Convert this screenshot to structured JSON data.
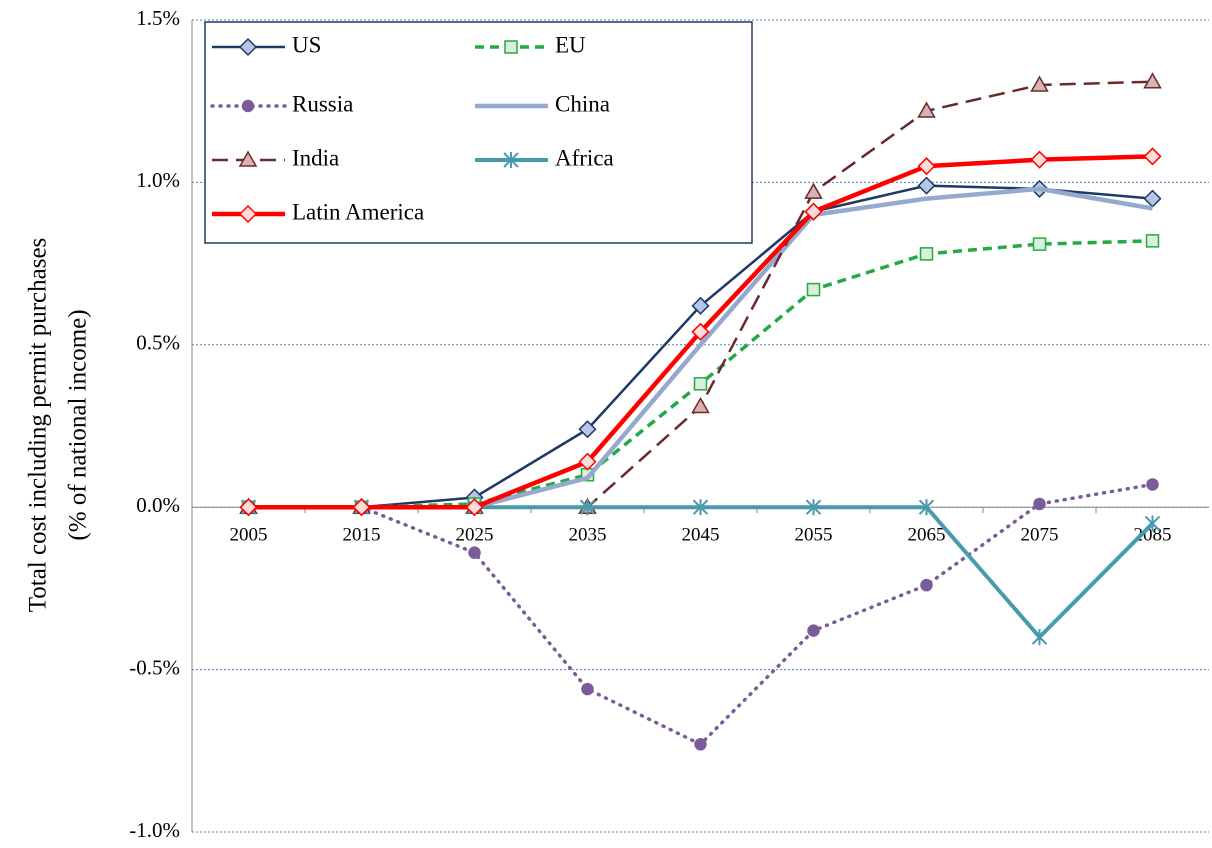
{
  "chart_data": {
    "type": "line",
    "ylabel": [
      "Total cost including permit purchases",
      "(% of national income)"
    ],
    "categories": [
      "2005",
      "2015",
      "2025",
      "2035",
      "2045",
      "2055",
      "2065",
      "2075",
      "2085"
    ],
    "ylim": [
      -1.0,
      1.5
    ],
    "yticks": [
      {
        "value": -1.0,
        "label": "-1.0%"
      },
      {
        "value": -0.5,
        "label": "-0.5%"
      },
      {
        "value": 0.0,
        "label": "0.0%"
      },
      {
        "value": 0.5,
        "label": "0.5%"
      },
      {
        "value": 1.0,
        "label": "1.0%"
      },
      {
        "value": 1.5,
        "label": "1.5%"
      }
    ],
    "grid": true,
    "legend": "top-left",
    "series": [
      {
        "name": "US",
        "color": "#1f3864",
        "marker": "diamond",
        "marker_fill": "#b4c7e7",
        "dash": "solid",
        "width": 2.5,
        "values": [
          0,
          0,
          0.03,
          0.24,
          0.62,
          0.91,
          0.99,
          0.98,
          0.95
        ]
      },
      {
        "name": "EU",
        "color": "#22aa44",
        "marker": "square",
        "marker_fill": "#d8f0dc",
        "dash": "dashed",
        "width": 3.5,
        "values": [
          0,
          0,
          0.01,
          0.1,
          0.38,
          0.67,
          0.78,
          0.81,
          0.82
        ]
      },
      {
        "name": "Russia",
        "color": "#7a5c99",
        "marker": "circle",
        "marker_fill": "#7a5c99",
        "dash": "dotted",
        "width": 3.5,
        "values": [
          0,
          0,
          -0.14,
          -0.56,
          -0.73,
          -0.38,
          -0.24,
          0.01,
          0.07
        ]
      },
      {
        "name": "China",
        "color": "#95a9cf",
        "marker": "none",
        "marker_fill": "#95a9cf",
        "dash": "solid",
        "width": 4.5,
        "values": [
          0,
          0,
          0,
          0.09,
          0.5,
          0.9,
          0.95,
          0.98,
          0.92
        ]
      },
      {
        "name": "India",
        "color": "#6b2a2a",
        "marker": "triangle",
        "marker_fill": "#d9b3b3",
        "dash": "long-dash",
        "width": 2.5,
        "values": [
          0,
          0,
          0,
          0,
          0.31,
          0.97,
          1.22,
          1.3,
          1.31
        ]
      },
      {
        "name": "Africa",
        "color": "#4a9aad",
        "marker": "star",
        "marker_fill": "#4a9aad",
        "dash": "solid",
        "width": 4,
        "values": [
          0,
          0,
          0,
          0,
          0,
          0,
          0,
          -0.4,
          -0.05
        ]
      },
      {
        "name": "Latin America",
        "color": "#ff0000",
        "marker": "diamond",
        "marker_fill": "#fadcd9",
        "dash": "solid",
        "width": 4.5,
        "values": [
          0,
          0,
          0,
          0.14,
          0.54,
          0.91,
          1.05,
          1.07,
          1.08
        ]
      }
    ]
  }
}
